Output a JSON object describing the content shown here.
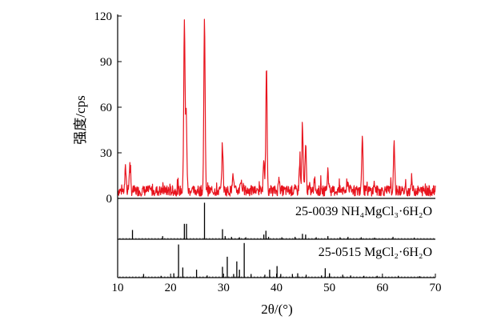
{
  "chart_data": {
    "type": "line",
    "xlabel": "2θ/(°)",
    "ylabel": "强度/cps",
    "xlim": [
      10,
      70
    ],
    "ylim": [
      0,
      120
    ],
    "x_ticks": [
      10,
      20,
      30,
      40,
      50,
      60,
      70
    ],
    "y_ticks": [
      0,
      30,
      60,
      90,
      120
    ],
    "series": [
      {
        "color": "#e8141e",
        "baseline": 5,
        "peaks": [
          {
            "x": 11.5,
            "y": 20
          },
          {
            "x": 12.3,
            "y": 22
          },
          {
            "x": 22.6,
            "y": 118
          },
          {
            "x": 22.95,
            "y": 56
          },
          {
            "x": 26.4,
            "y": 118
          },
          {
            "x": 29.8,
            "y": 35
          },
          {
            "x": 31.8,
            "y": 16
          },
          {
            "x": 33.2,
            "y": 12
          },
          {
            "x": 37.6,
            "y": 22
          },
          {
            "x": 38.1,
            "y": 85
          },
          {
            "x": 40.5,
            "y": 14
          },
          {
            "x": 44.4,
            "y": 25
          },
          {
            "x": 44.9,
            "y": 46
          },
          {
            "x": 45.5,
            "y": 36
          },
          {
            "x": 47.2,
            "y": 12
          },
          {
            "x": 49.7,
            "y": 19
          },
          {
            "x": 53.5,
            "y": 11
          },
          {
            "x": 56.2,
            "y": 40
          },
          {
            "x": 58.5,
            "y": 10
          },
          {
            "x": 62.2,
            "y": 33
          },
          {
            "x": 65.5,
            "y": 13
          }
        ]
      }
    ],
    "references": [
      {
        "label": "25-0039 NH₄MgCl₃·6H₂O",
        "lines": [
          {
            "x": 12.8,
            "h": 0.24
          },
          {
            "x": 18.5,
            "h": 0.08
          },
          {
            "x": 22.6,
            "h": 0.4
          },
          {
            "x": 23.0,
            "h": 0.4
          },
          {
            "x": 26.4,
            "h": 0.95
          },
          {
            "x": 29.8,
            "h": 0.26
          },
          {
            "x": 30.3,
            "h": 0.08
          },
          {
            "x": 31.5,
            "h": 0.06
          },
          {
            "x": 33.0,
            "h": 0.05
          },
          {
            "x": 34.2,
            "h": 0.05
          },
          {
            "x": 37.6,
            "h": 0.12
          },
          {
            "x": 38.0,
            "h": 0.22
          },
          {
            "x": 38.5,
            "h": 0.06
          },
          {
            "x": 41.0,
            "h": 0.05
          },
          {
            "x": 43.5,
            "h": 0.06
          },
          {
            "x": 44.9,
            "h": 0.14
          },
          {
            "x": 45.5,
            "h": 0.12
          },
          {
            "x": 47.5,
            "h": 0.05
          },
          {
            "x": 49.7,
            "h": 0.08
          },
          {
            "x": 52.0,
            "h": 0.05
          },
          {
            "x": 53.5,
            "h": 0.06
          },
          {
            "x": 56.0,
            "h": 0.05
          },
          {
            "x": 58.5,
            "h": 0.04
          },
          {
            "x": 62.0,
            "h": 0.06
          },
          {
            "x": 66.0,
            "h": 0.04
          }
        ]
      },
      {
        "label": "25-0515 MgCl₂·6H₂O",
        "lines": [
          {
            "x": 14.9,
            "h": 0.1
          },
          {
            "x": 18.2,
            "h": 0.05
          },
          {
            "x": 20.6,
            "h": 0.12
          },
          {
            "x": 21.5,
            "h": 0.92
          },
          {
            "x": 22.3,
            "h": 0.28
          },
          {
            "x": 24.9,
            "h": 0.22
          },
          {
            "x": 26.9,
            "h": 0.06
          },
          {
            "x": 29.8,
            "h": 0.3
          },
          {
            "x": 30.7,
            "h": 0.58
          },
          {
            "x": 31.9,
            "h": 0.1
          },
          {
            "x": 32.5,
            "h": 0.45
          },
          {
            "x": 33.0,
            "h": 0.22
          },
          {
            "x": 33.9,
            "h": 0.96
          },
          {
            "x": 35.2,
            "h": 0.1
          },
          {
            "x": 37.8,
            "h": 0.08
          },
          {
            "x": 38.7,
            "h": 0.22
          },
          {
            "x": 40.1,
            "h": 0.32
          },
          {
            "x": 40.8,
            "h": 0.1
          },
          {
            "x": 43.0,
            "h": 0.1
          },
          {
            "x": 44.0,
            "h": 0.12
          },
          {
            "x": 45.6,
            "h": 0.08
          },
          {
            "x": 48.5,
            "h": 0.06
          },
          {
            "x": 49.2,
            "h": 0.26
          },
          {
            "x": 50.0,
            "h": 0.12
          },
          {
            "x": 52.5,
            "h": 0.08
          },
          {
            "x": 54.0,
            "h": 0.06
          },
          {
            "x": 56.5,
            "h": 0.05
          },
          {
            "x": 59.0,
            "h": 0.05
          },
          {
            "x": 63.0,
            "h": 0.05
          },
          {
            "x": 67.0,
            "h": 0.04
          }
        ]
      }
    ]
  }
}
